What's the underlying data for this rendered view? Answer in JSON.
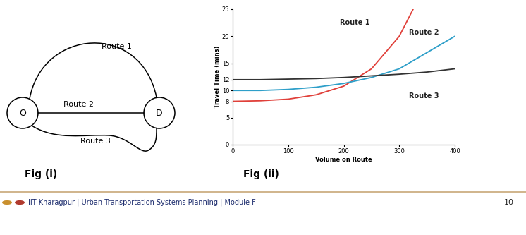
{
  "chart_data": {
    "type": "line",
    "title": "Fig (ii)",
    "xlabel": "Volume on Route",
    "ylabel": "Travel Time (mins)",
    "x": [
      0,
      50,
      100,
      150,
      200,
      250,
      300,
      325,
      350,
      375,
      400
    ],
    "series": [
      {
        "name": "Route 1",
        "color": "#e0403a",
        "values": [
          8,
          8.1,
          8.4,
          9.2,
          10.8,
          14,
          20,
          25,
          null,
          null,
          null
        ]
      },
      {
        "name": "Route 2",
        "color": "#2e9fc9",
        "values": [
          10,
          10,
          10.2,
          10.6,
          11.3,
          12.4,
          14,
          15.5,
          17,
          18.5,
          20
        ]
      },
      {
        "name": "Route 3",
        "color": "#333333",
        "values": [
          12,
          12,
          12.1,
          12.2,
          12.4,
          12.7,
          13,
          13.2,
          13.4,
          13.7,
          14
        ]
      }
    ],
    "xlim": [
      0,
      400
    ],
    "xticks": [
      0,
      100,
      200,
      300,
      400
    ],
    "ylim": [
      0,
      25
    ],
    "yticks": [
      0,
      5,
      8,
      10,
      12,
      15,
      20,
      25
    ],
    "grid": false
  },
  "diagram": {
    "nodes": [
      "O",
      "D"
    ],
    "routes": [
      "Route 1",
      "Route 2",
      "Route 3"
    ],
    "caption": "Fig (i)"
  },
  "footer": {
    "text": "IIT Kharagpur | Urban Transportation Systems Planning | Module F",
    "page": "10"
  }
}
